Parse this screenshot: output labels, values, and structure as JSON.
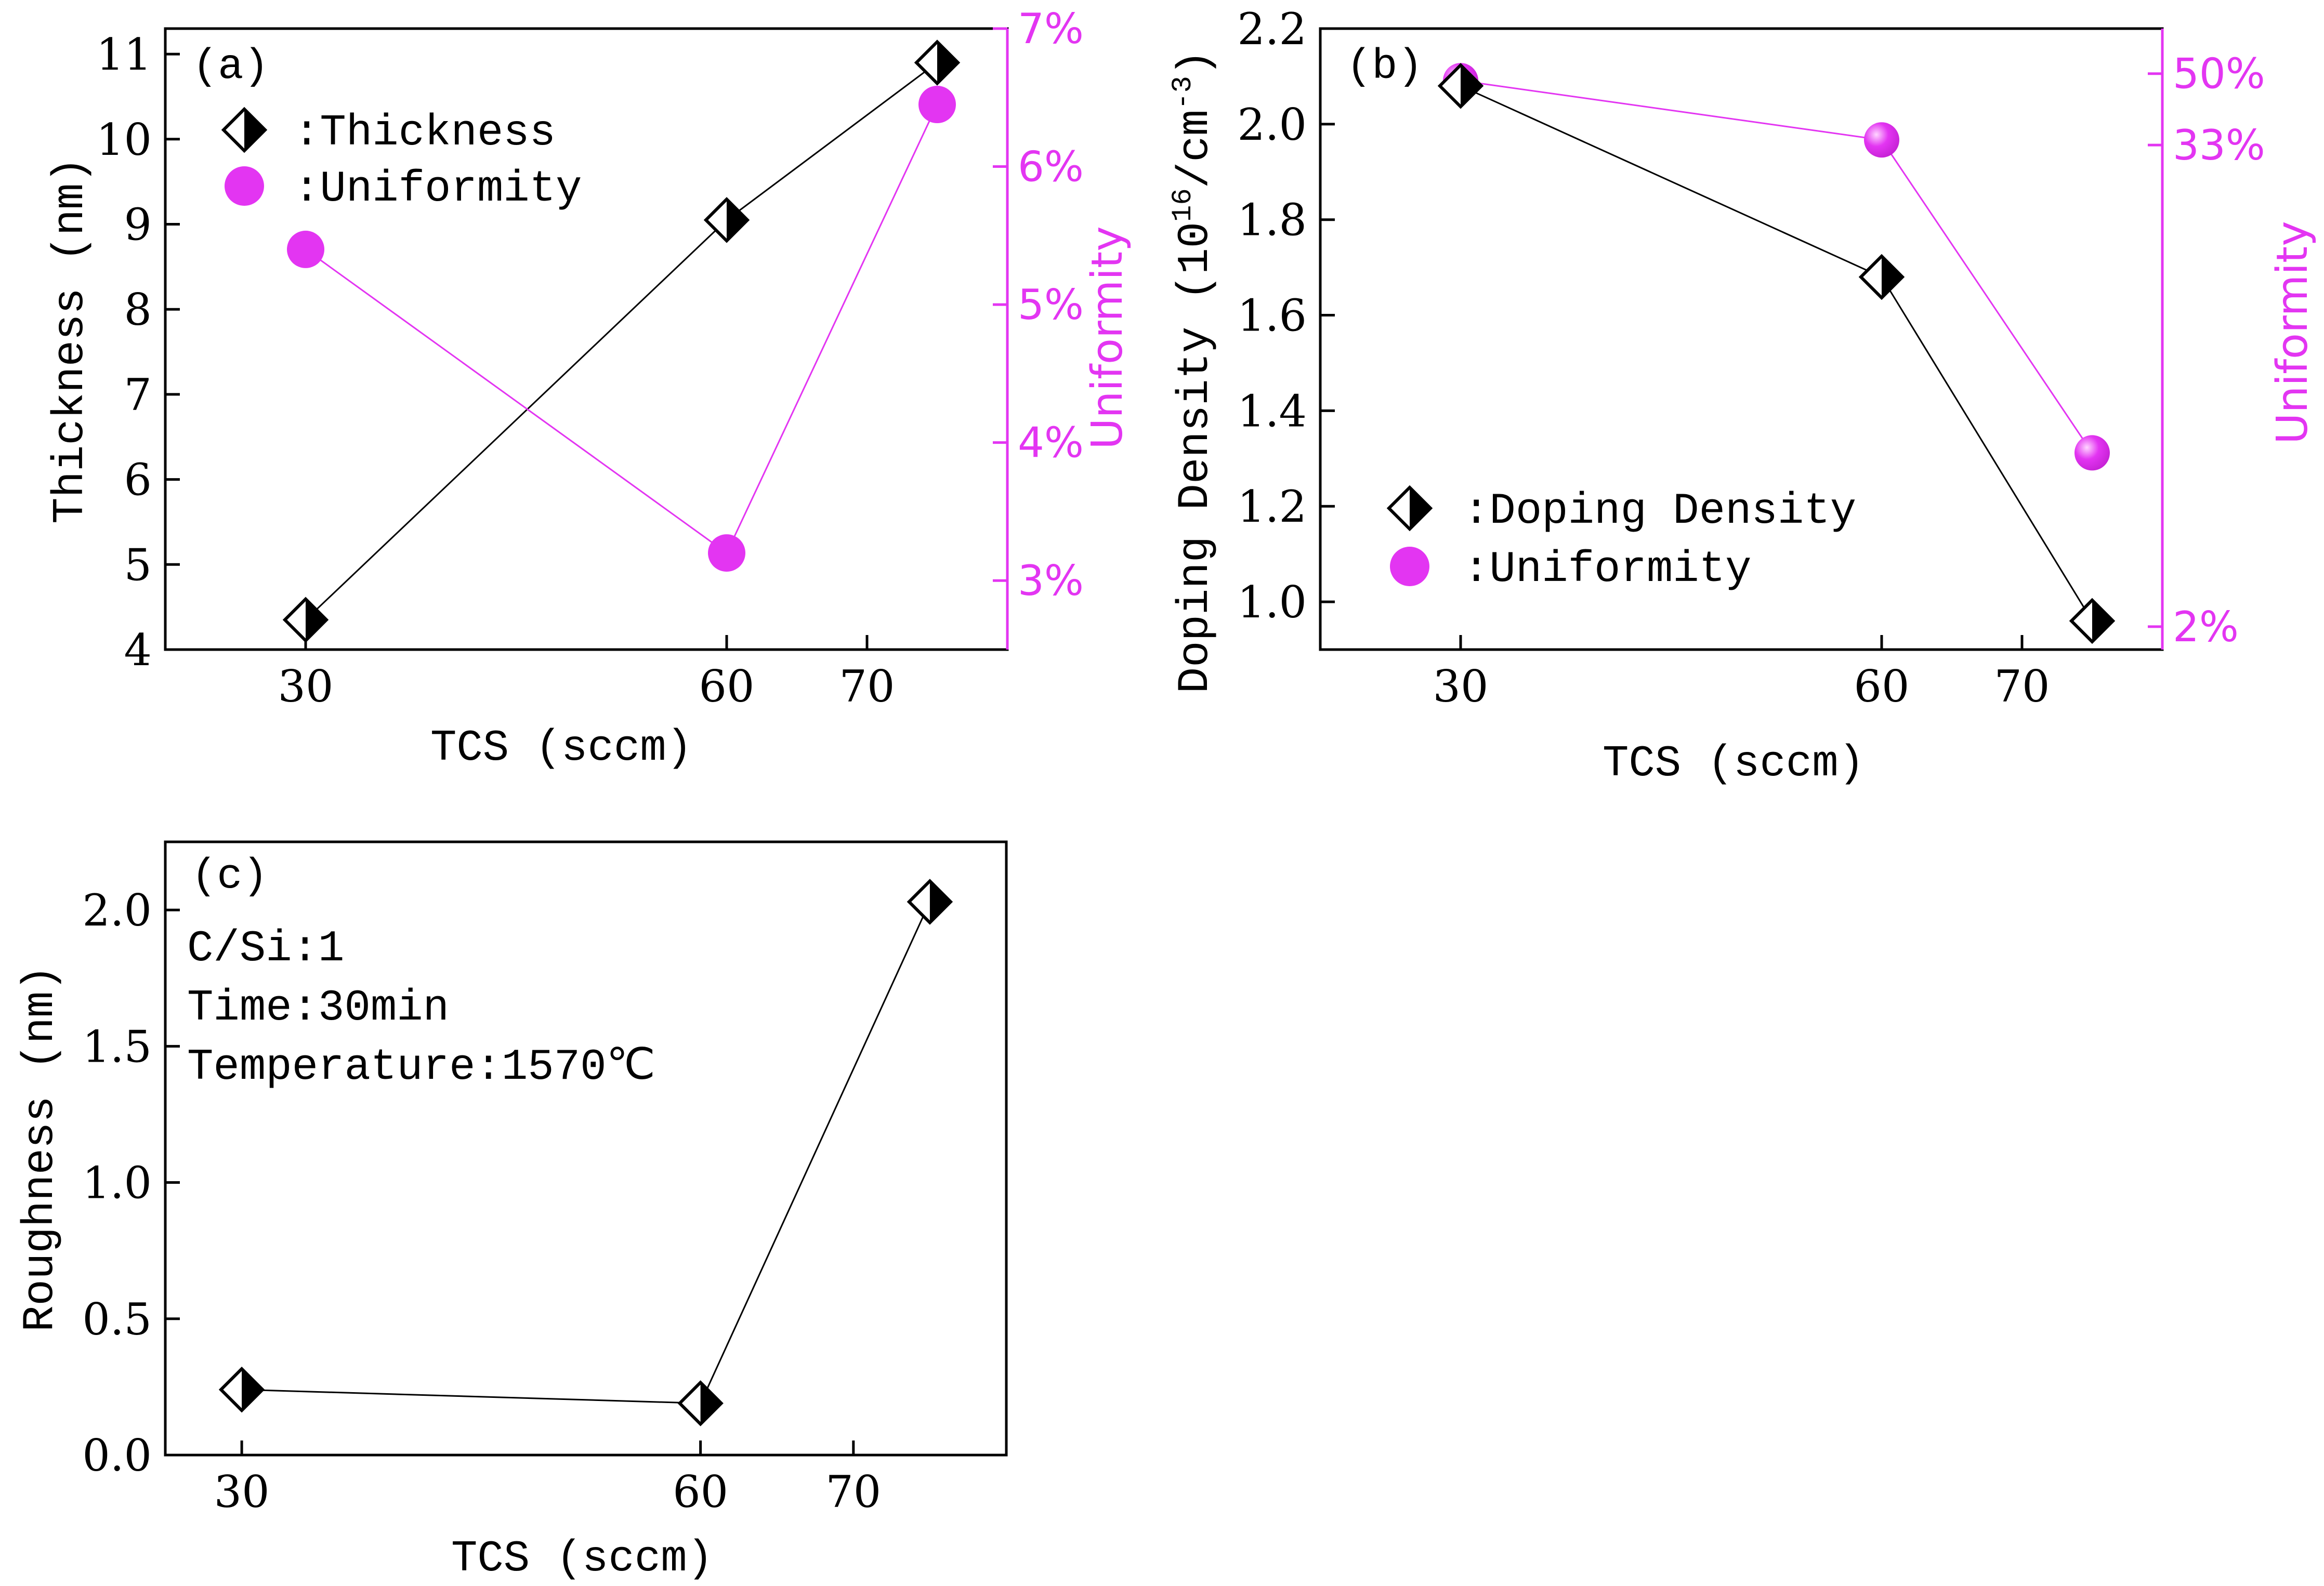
{
  "colors": {
    "axis": "#000000",
    "accent": "#e335f2",
    "line": "#000000",
    "marker_fill": "#000000",
    "marker_face": "#ffffff"
  },
  "chart_data": [
    {
      "panel_label": "(a)",
      "type": "line",
      "xlabel": "TCS (sccm)",
      "ylabel": "Thickness (nm)",
      "y2label": "Uniformity",
      "xticks": [
        30,
        60,
        70
      ],
      "x": [
        30,
        60,
        75
      ],
      "xlim": [
        20,
        80
      ],
      "ylim": [
        4,
        11.3
      ],
      "yticks": [
        4,
        5,
        6,
        7,
        8,
        9,
        10,
        11
      ],
      "y2lim": [
        2.5,
        7
      ],
      "y2ticks": [
        3,
        4,
        5,
        6,
        7
      ],
      "y2ticklabels": [
        "3%",
        "4%",
        "5%",
        "6%",
        "7%"
      ],
      "series": [
        {
          "name": ":Thickness",
          "axis": "left",
          "marker": "half-diamond",
          "values": [
            4.35,
            9.05,
            10.9
          ]
        },
        {
          "name": ":Uniformity",
          "axis": "right",
          "marker": "circle",
          "values": [
            5.4,
            3.2,
            6.45
          ]
        }
      ],
      "legend": "top-left"
    },
    {
      "panel_label": "(b)",
      "type": "line",
      "xlabel": "TCS (sccm)",
      "ylabel": "Doping Density (10",
      "ylabel_sup1": "16",
      "ylabel_mid": "/cm",
      "ylabel_sup2": "-3",
      "ylabel_end": ")",
      "y2label": "Uniformity",
      "xticks": [
        30,
        60,
        70
      ],
      "x": [
        30,
        60,
        75
      ],
      "xlim": [
        20,
        80
      ],
      "ylim": [
        0.9,
        2.2
      ],
      "yticks": [
        1.0,
        1.2,
        1.4,
        1.6,
        1.8,
        2.0,
        2.2
      ],
      "yticklabels": [
        "1.0",
        "1.2",
        "1.4",
        "1.6",
        "1.8",
        "2.0",
        "2.2"
      ],
      "y2scale": "log",
      "y2lim": [
        1.75,
        65
      ],
      "y2ticks": [
        2,
        33,
        50
      ],
      "y2ticklabels": [
        "2%",
        "33%",
        "50%"
      ],
      "series": [
        {
          "name": ":Doping Density",
          "axis": "left",
          "marker": "half-diamond",
          "values": [
            2.08,
            1.68,
            0.96
          ]
        },
        {
          "name": ":Uniformity",
          "axis": "right",
          "marker": "circle",
          "values": [
            48,
            34,
            5.5
          ]
        }
      ],
      "legend": "lower-left"
    },
    {
      "panel_label": "(c)",
      "type": "line",
      "xlabel": "TCS (sccm)",
      "ylabel": "Roughness (nm)",
      "xticks": [
        30,
        60,
        70
      ],
      "x": [
        30,
        60,
        75
      ],
      "xlim": [
        25,
        80
      ],
      "ylim": [
        0,
        2.25
      ],
      "yticks": [
        0.0,
        0.5,
        1.0,
        1.5,
        2.0
      ],
      "yticklabels": [
        "0.0",
        "0.5",
        "1.0",
        "1.5",
        "2.0"
      ],
      "series": [
        {
          "name": "Roughness",
          "axis": "left",
          "marker": "half-diamond",
          "values": [
            0.24,
            0.19,
            2.03
          ]
        }
      ],
      "annotations": [
        "C/Si:1",
        "Time:30min",
        "Temperature:1570℃"
      ]
    }
  ]
}
